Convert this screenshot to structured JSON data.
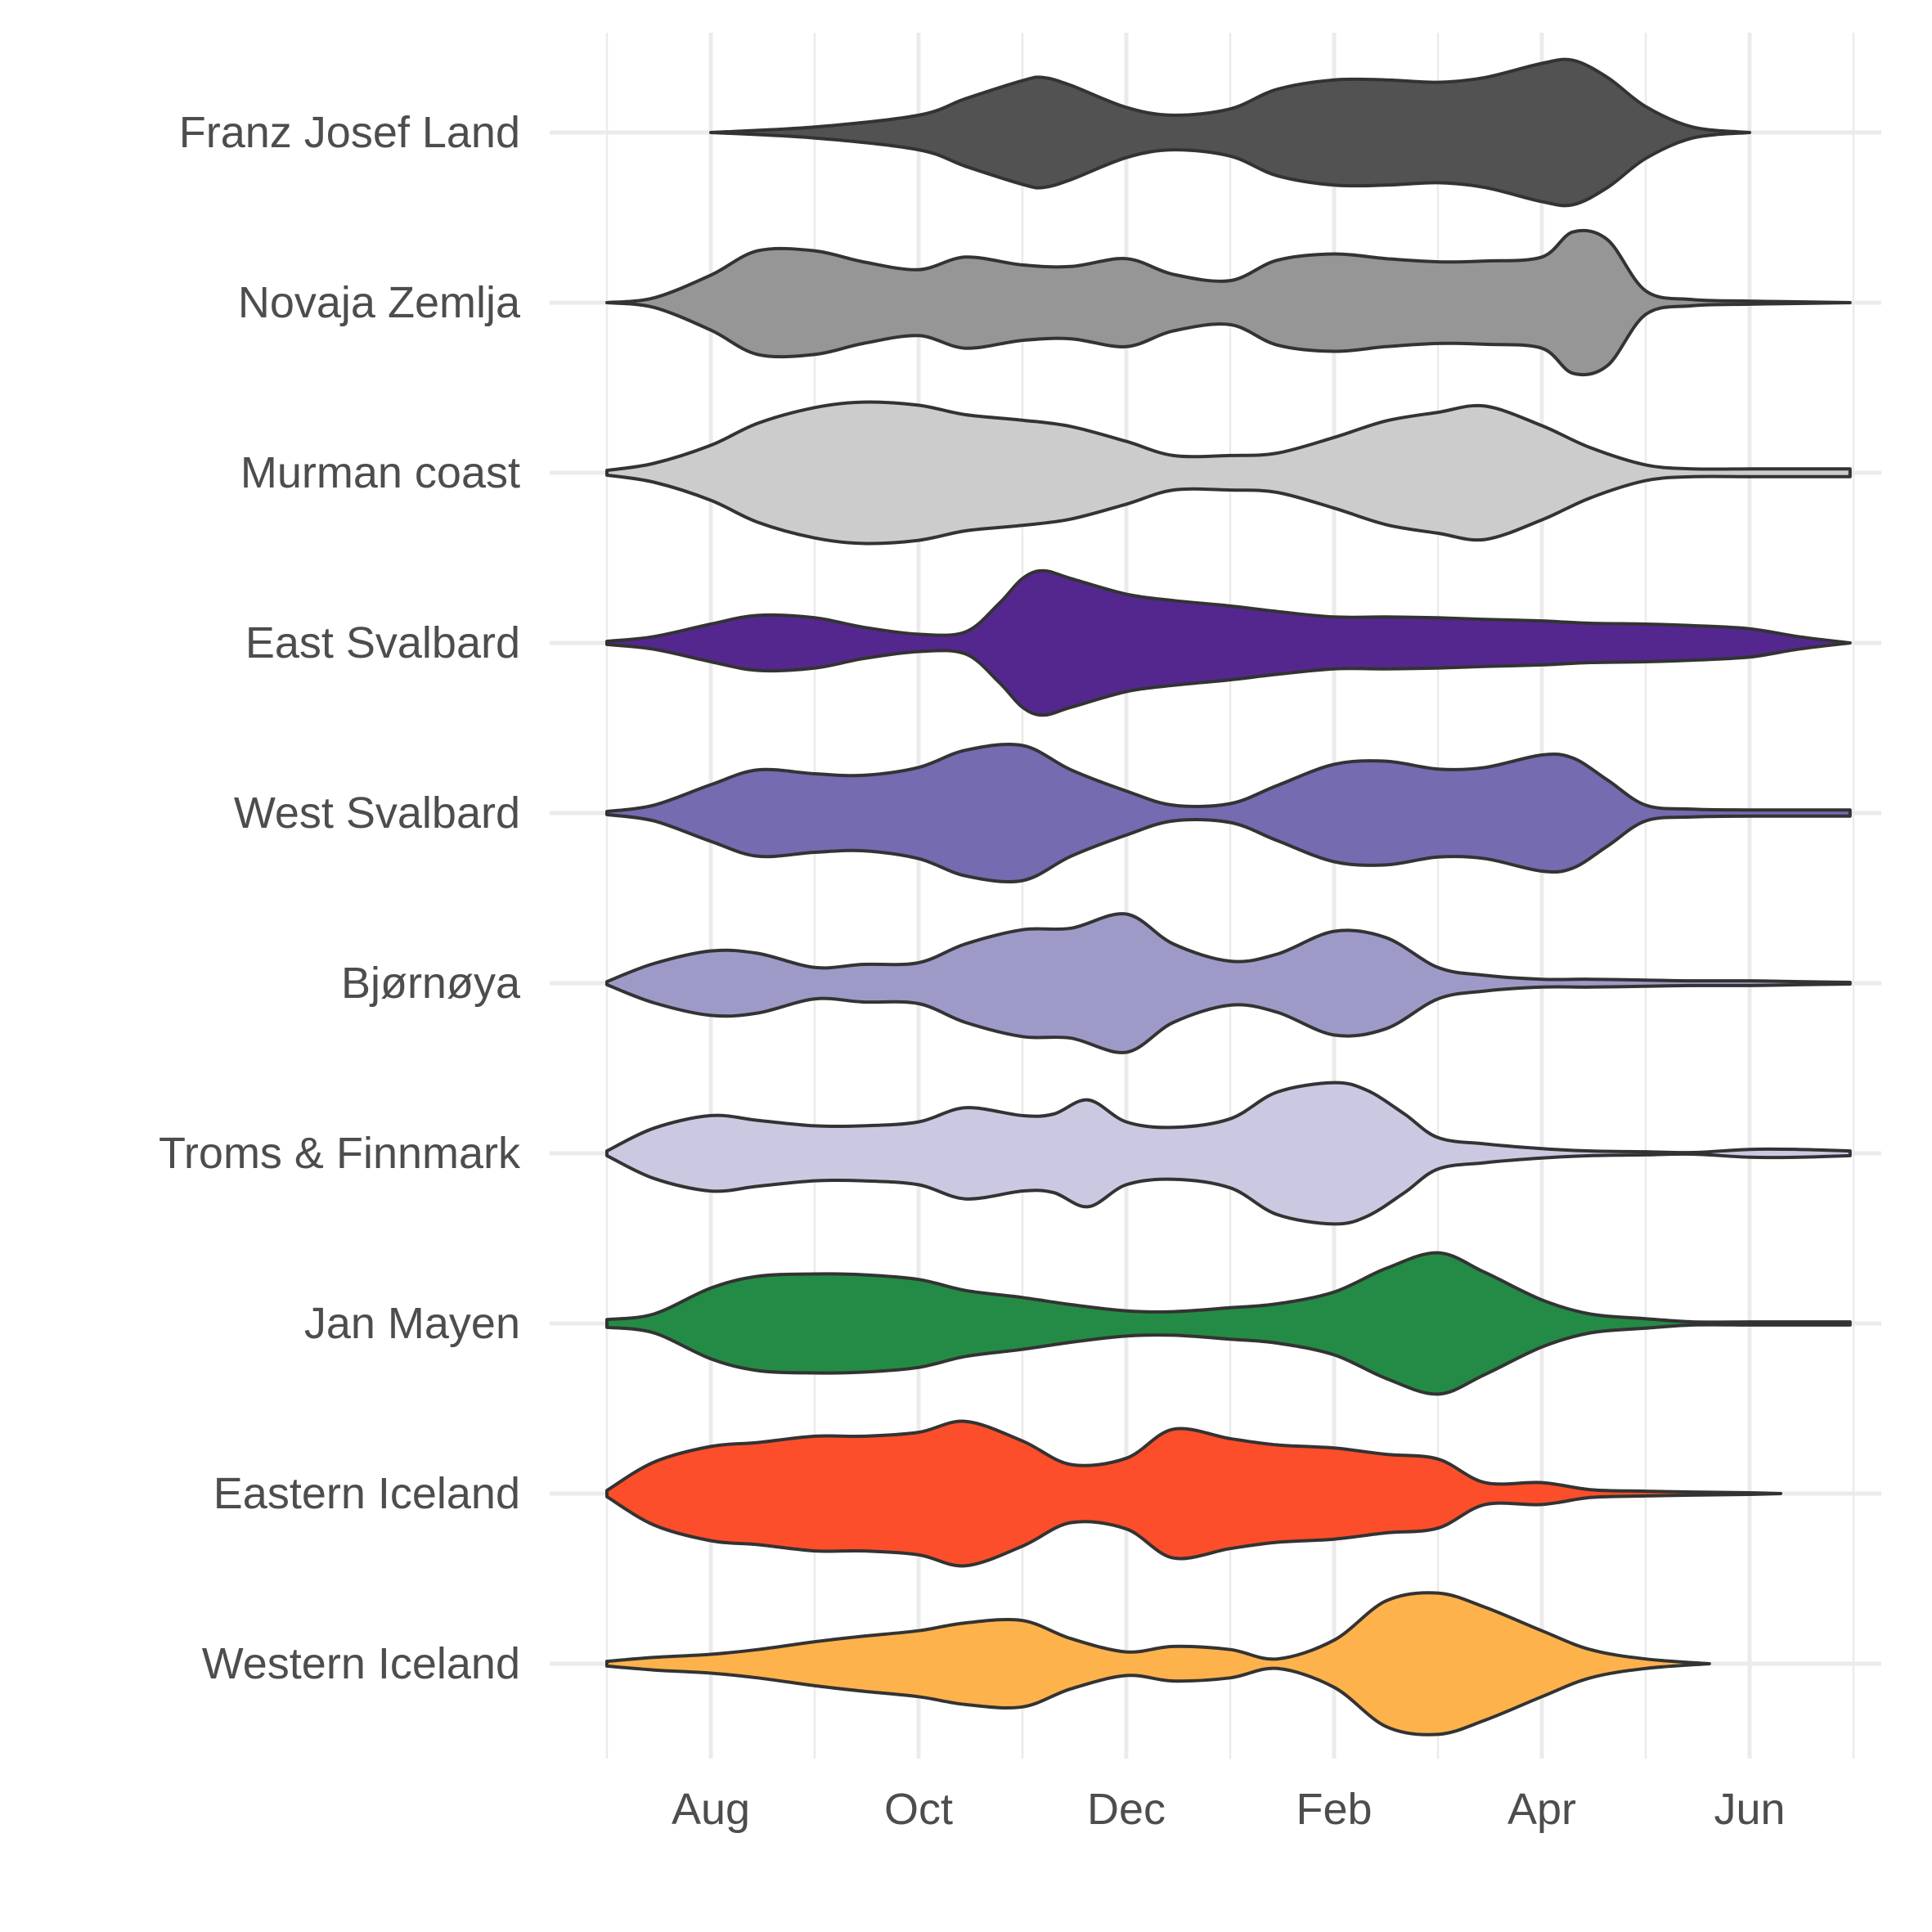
{
  "chart_data": {
    "type": "violin",
    "orientation": "horizontal",
    "x_axis": {
      "tick_labels": [
        "Aug",
        "Oct",
        "Dec",
        "Feb",
        "Apr",
        "Jun"
      ],
      "range": [
        "Jul 1",
        "Jun 30"
      ]
    },
    "grid": true,
    "legend": "none",
    "series": [
      {
        "name": "Franz Josef Land",
        "fill": "#525252",
        "x": [
          "Aug 1",
          "Sep 1",
          "Oct 1",
          "Oct 15",
          "Nov 1",
          "Nov 7",
          "Nov 15",
          "Dec 1",
          "Dec 15",
          "Jan 1",
          "Jan 15",
          "Feb 1",
          "Feb 15",
          "Mar 1",
          "Mar 15",
          "Apr 1",
          "Apr 10",
          "Apr 20",
          "May 1",
          "May 15",
          "Jun 1"
        ],
        "density": [
          0.0,
          0.07,
          0.22,
          0.43,
          0.66,
          0.7,
          0.6,
          0.32,
          0.22,
          0.3,
          0.55,
          0.67,
          0.67,
          0.64,
          0.7,
          0.88,
          0.92,
          0.7,
          0.33,
          0.07,
          0.0
        ]
      },
      {
        "name": "Novaja Zemlja",
        "fill": "#969696",
        "x": [
          "Jul 1",
          "Jul 15",
          "Aug 1",
          "Aug 15",
          "Sep 1",
          "Sep 15",
          "Oct 1",
          "Oct 15",
          "Nov 1",
          "Nov 15",
          "Dec 1",
          "Dec 15",
          "Jan 1",
          "Jan 15",
          "Feb 1",
          "Feb 15",
          "Mar 1",
          "Mar 15",
          "Apr 1",
          "Apr 10",
          "Apr 20",
          "May 1",
          "May 15",
          "Jun 1",
          "Jun 15",
          "Jun 30"
        ],
        "density": [
          0.0,
          0.06,
          0.35,
          0.66,
          0.66,
          0.52,
          0.42,
          0.58,
          0.48,
          0.46,
          0.56,
          0.36,
          0.28,
          0.54,
          0.62,
          0.56,
          0.52,
          0.53,
          0.58,
          0.9,
          0.8,
          0.15,
          0.04,
          0.02,
          0.01,
          0.0
        ]
      },
      {
        "name": "Murman coast",
        "fill": "#cccccc",
        "x": [
          "Jul 1",
          "Jul 15",
          "Aug 1",
          "Aug 15",
          "Sep 1",
          "Sep 15",
          "Oct 1",
          "Oct 15",
          "Nov 1",
          "Nov 15",
          "Dec 1",
          "Dec 15",
          "Jan 1",
          "Jan 15",
          "Feb 1",
          "Feb 15",
          "Mar 1",
          "Mar 15",
          "Apr 1",
          "Apr 15",
          "May 1",
          "May 15",
          "Jun 1",
          "Jun 15",
          "Jun 30"
        ],
        "density": [
          0.03,
          0.12,
          0.35,
          0.63,
          0.83,
          0.9,
          0.86,
          0.74,
          0.67,
          0.59,
          0.4,
          0.22,
          0.22,
          0.25,
          0.45,
          0.66,
          0.77,
          0.85,
          0.6,
          0.32,
          0.1,
          0.05,
          0.05,
          0.05,
          0.05
        ]
      },
      {
        "name": "East Svalbard",
        "fill": "#54278f",
        "x": [
          "Jul 1",
          "Jul 15",
          "Aug 1",
          "Aug 15",
          "Sep 1",
          "Sep 15",
          "Oct 1",
          "Oct 15",
          "Oct 25",
          "Nov 1",
          "Nov 7",
          "Nov 15",
          "Dec 1",
          "Dec 15",
          "Jan 1",
          "Jan 15",
          "Feb 1",
          "Feb 15",
          "Mar 1",
          "Mar 15",
          "Apr 1",
          "Apr 15",
          "May 1",
          "May 15",
          "Jun 1",
          "Jun 15",
          "Jun 30"
        ],
        "density": [
          0.02,
          0.08,
          0.24,
          0.35,
          0.32,
          0.2,
          0.11,
          0.14,
          0.5,
          0.82,
          0.92,
          0.82,
          0.62,
          0.54,
          0.47,
          0.4,
          0.33,
          0.33,
          0.32,
          0.3,
          0.28,
          0.25,
          0.24,
          0.22,
          0.18,
          0.08,
          0.0
        ]
      },
      {
        "name": "West Svalbard",
        "fill": "#756bb1",
        "x": [
          "Jul 1",
          "Jul 15",
          "Aug 1",
          "Aug 15",
          "Sep 1",
          "Sep 15",
          "Oct 1",
          "Oct 15",
          "Nov 1",
          "Nov 15",
          "Dec 1",
          "Dec 15",
          "Jan 1",
          "Jan 15",
          "Feb 1",
          "Feb 15",
          "Mar 1",
          "Mar 15",
          "Apr 1",
          "Apr 10",
          "Apr 20",
          "May 1",
          "May 15",
          "Jun 1",
          "Jun 15",
          "Jun 30"
        ],
        "density": [
          0.02,
          0.1,
          0.36,
          0.55,
          0.5,
          0.48,
          0.58,
          0.8,
          0.86,
          0.55,
          0.28,
          0.1,
          0.12,
          0.35,
          0.62,
          0.66,
          0.56,
          0.58,
          0.74,
          0.7,
          0.42,
          0.1,
          0.05,
          0.04,
          0.04,
          0.04
        ]
      },
      {
        "name": "Bjørnøya",
        "fill": "#9e9ac8",
        "x": [
          "Jul 1",
          "Jul 15",
          "Aug 1",
          "Aug 15",
          "Sep 1",
          "Sep 15",
          "Oct 1",
          "Oct 15",
          "Nov 1",
          "Nov 15",
          "Dec 1",
          "Dec 15",
          "Jan 1",
          "Jan 15",
          "Feb 1",
          "Feb 15",
          "Mar 1",
          "Mar 15",
          "Apr 1",
          "Apr 15",
          "May 1",
          "May 15",
          "Jun 1",
          "Jun 15",
          "Jun 30"
        ],
        "density": [
          0.02,
          0.25,
          0.41,
          0.38,
          0.2,
          0.24,
          0.26,
          0.5,
          0.68,
          0.7,
          0.88,
          0.5,
          0.28,
          0.37,
          0.66,
          0.58,
          0.2,
          0.1,
          0.05,
          0.05,
          0.04,
          0.03,
          0.03,
          0.02,
          0.01
        ]
      },
      {
        "name": "Troms & Finnmark",
        "fill": "#cbc9e2",
        "x": [
          "Jul 1",
          "Jul 15",
          "Aug 1",
          "Aug 15",
          "Sep 1",
          "Sep 15",
          "Oct 1",
          "Oct 15",
          "Nov 1",
          "Nov 10",
          "Nov 20",
          "Dec 1",
          "Dec 15",
          "Jan 1",
          "Jan 15",
          "Feb 1",
          "Feb 10",
          "Feb 20",
          "Mar 1",
          "Mar 15",
          "Apr 1",
          "Apr 15",
          "May 1",
          "May 15",
          "Jun 1",
          "Jun 15",
          "Jun 30"
        ],
        "density": [
          0.03,
          0.32,
          0.48,
          0.42,
          0.35,
          0.35,
          0.4,
          0.58,
          0.48,
          0.5,
          0.68,
          0.4,
          0.33,
          0.44,
          0.78,
          0.9,
          0.8,
          0.5,
          0.2,
          0.12,
          0.06,
          0.03,
          0.02,
          0.01,
          0.05,
          0.05,
          0.03
        ]
      },
      {
        "name": "Jan Mayen",
        "fill": "#238b45",
        "x": [
          "Jul 1",
          "Jul 15",
          "Aug 1",
          "Aug 15",
          "Sep 1",
          "Sep 15",
          "Oct 1",
          "Oct 15",
          "Nov 1",
          "Nov 15",
          "Dec 1",
          "Dec 15",
          "Jan 1",
          "Jan 15",
          "Feb 1",
          "Feb 15",
          "Mar 1",
          "Mar 15",
          "Apr 1",
          "Apr 15",
          "May 1",
          "May 15",
          "Jun 1",
          "Jun 15",
          "Jun 30"
        ],
        "density": [
          0.05,
          0.12,
          0.45,
          0.6,
          0.63,
          0.62,
          0.56,
          0.42,
          0.33,
          0.24,
          0.16,
          0.15,
          0.2,
          0.25,
          0.4,
          0.7,
          0.9,
          0.65,
          0.3,
          0.12,
          0.06,
          0.02,
          0.02,
          0.02,
          0.02
        ]
      },
      {
        "name": "Eastern Iceland",
        "fill": "#fc4e2a",
        "x": [
          "Jul 1",
          "Jul 15",
          "Aug 1",
          "Aug 15",
          "Sep 1",
          "Sep 15",
          "Oct 1",
          "Oct 15",
          "Nov 1",
          "Nov 15",
          "Dec 1",
          "Dec 15",
          "Jan 1",
          "Jan 15",
          "Feb 1",
          "Feb 15",
          "Mar 1",
          "Mar 15",
          "Apr 1",
          "Apr 15",
          "May 1",
          "May 15",
          "Jun 1",
          "Jun 10"
        ],
        "density": [
          0.04,
          0.4,
          0.6,
          0.65,
          0.73,
          0.73,
          0.78,
          0.92,
          0.67,
          0.37,
          0.45,
          0.82,
          0.7,
          0.62,
          0.58,
          0.5,
          0.44,
          0.14,
          0.14,
          0.05,
          0.03,
          0.02,
          0.01,
          0.0
        ]
      },
      {
        "name": "Western Iceland",
        "fill": "#feb24c",
        "x": [
          "Jul 1",
          "Jul 15",
          "Aug 1",
          "Aug 15",
          "Sep 1",
          "Sep 15",
          "Oct 1",
          "Oct 15",
          "Nov 1",
          "Nov 15",
          "Dec 1",
          "Dec 15",
          "Jan 1",
          "Jan 15",
          "Feb 1",
          "Feb 15",
          "Mar 1",
          "Mar 15",
          "Apr 1",
          "Apr 15",
          "May 1",
          "May 20"
        ],
        "density": [
          0.03,
          0.08,
          0.12,
          0.18,
          0.28,
          0.35,
          0.42,
          0.52,
          0.55,
          0.32,
          0.15,
          0.22,
          0.18,
          0.06,
          0.3,
          0.8,
          0.9,
          0.72,
          0.42,
          0.18,
          0.06,
          0.0
        ]
      }
    ]
  }
}
